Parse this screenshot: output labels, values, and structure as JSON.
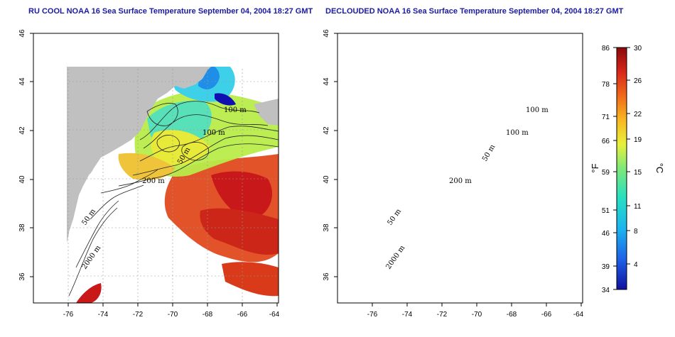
{
  "titles": {
    "left": "RU COOL NOAA 16 Sea Surface Temperature September 04, 2004 18:27 GMT",
    "right": "DECLOUDED NOAA 16 Sea Surface Temperature September 04, 2004 18:27 GMT"
  },
  "map": {
    "lat_ticks": [
      "46",
      "44",
      "42",
      "40",
      "38",
      "36"
    ],
    "lon_ticks": [
      "-76",
      "-74",
      "-72",
      "-70",
      "-68",
      "-66",
      "-64"
    ]
  },
  "contour_labels": {
    "left": [
      "100 m",
      "100 m",
      "50 m",
      "200 m",
      "50 m",
      "2000 m"
    ],
    "right": [
      "100 m",
      "100 m",
      "50 m",
      "200 m",
      "50 m",
      "2000 m"
    ]
  },
  "colorbar": {
    "fahrenheit_label": "°F",
    "celsius_label": "°C",
    "fahrenheit_ticks": [
      "86",
      "78",
      "71",
      "66",
      "59",
      "51",
      "46",
      "39",
      "34"
    ],
    "celsius_ticks": [
      "30",
      "26",
      "22",
      "19",
      "15",
      "11",
      "8",
      "4"
    ]
  }
}
